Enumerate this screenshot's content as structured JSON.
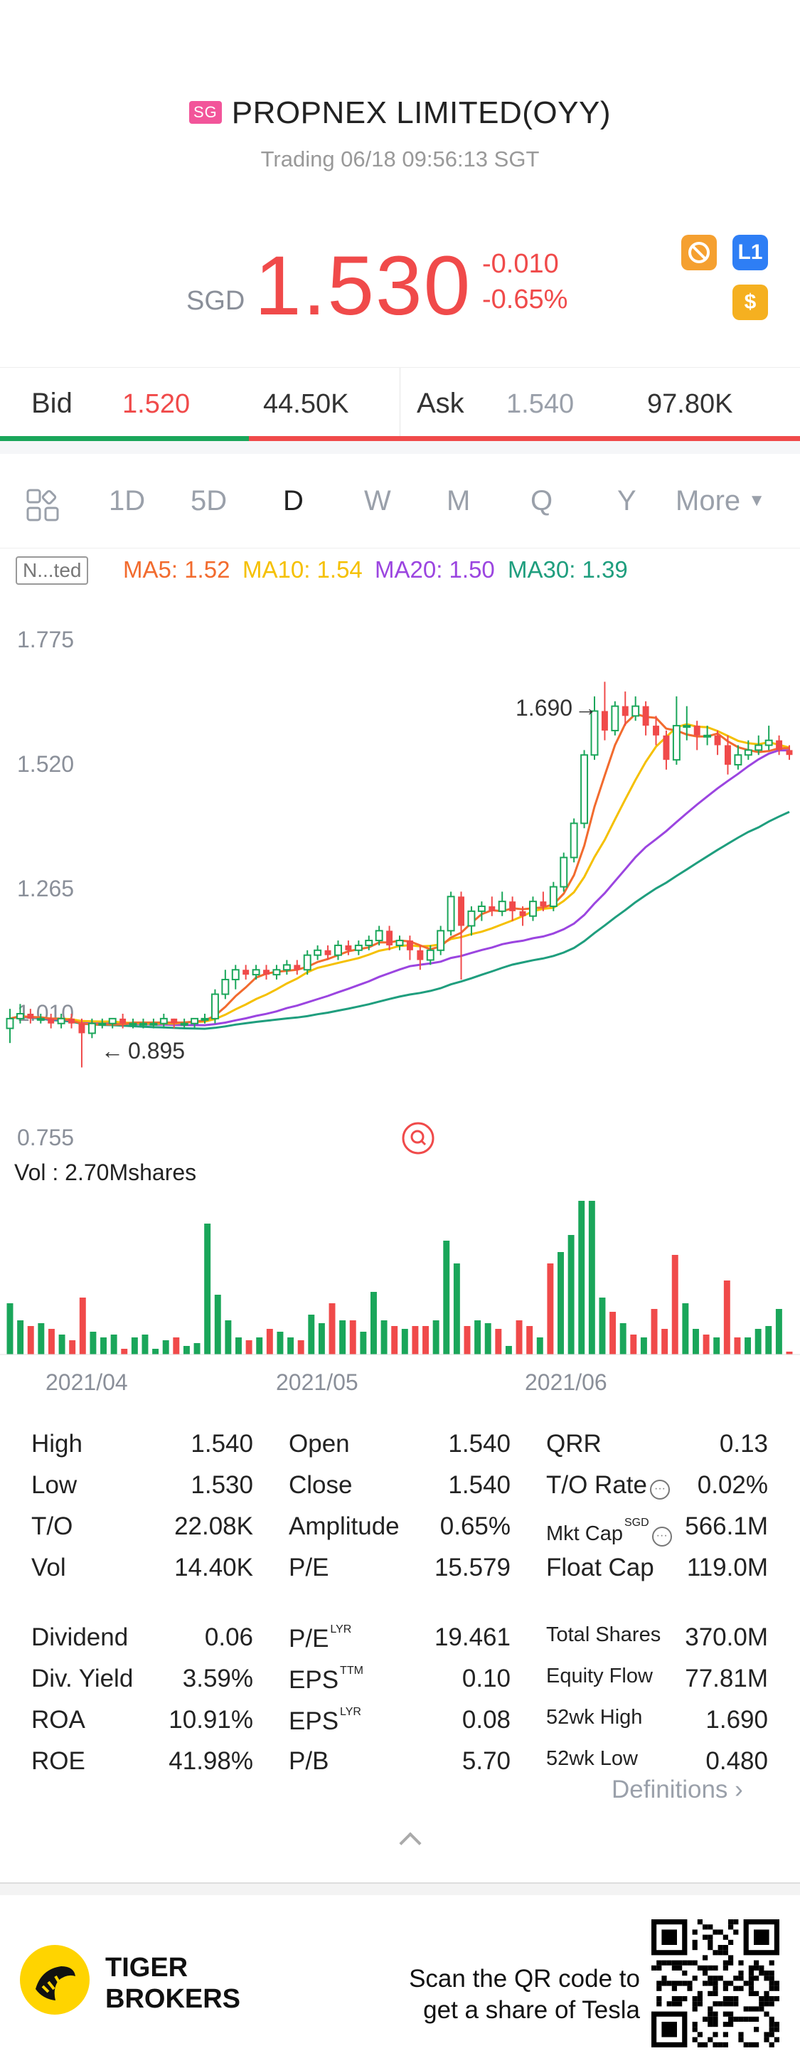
{
  "header": {
    "badge": "SG",
    "title": "PROPNEX LIMITED(OYY)",
    "status": "Trading 06/18 09:56:13 SGT"
  },
  "quote": {
    "currency": "SGD",
    "price": "1.530",
    "change": "-0.010",
    "change_pct": "-0.65%",
    "colors": {
      "down": "#f04a4a",
      "up": "#1aa65a"
    },
    "icons": [
      "no-short-icon",
      "level1-icon",
      "dollar-icon"
    ]
  },
  "bidask": {
    "bid_label": "Bid",
    "bid_price": "1.520",
    "bid_size": "44.50K",
    "ask_label": "Ask",
    "ask_price": "1.540",
    "ask_size": "97.80K"
  },
  "tabs": {
    "items": [
      "1D",
      "5D",
      "D",
      "W",
      "M",
      "Q",
      "Y"
    ],
    "active": "D",
    "more": "More"
  },
  "ma": {
    "mode": "N...ted",
    "ma5": "MA5: 1.52",
    "ma10": "MA10: 1.54",
    "ma20": "MA20: 1.50",
    "ma30": "MA30: 1.39",
    "colors": {
      "ma5": "#f26b2e",
      "ma10": "#f5c000",
      "ma20": "#9b45e0",
      "ma30": "#1f9e7e"
    }
  },
  "chart_data": {
    "type": "candlestick",
    "y_ticks": [
      "1.775",
      "1.520",
      "1.265",
      "1.010",
      "0.755"
    ],
    "ylim": [
      0.755,
      1.775
    ],
    "x_ticks": [
      "2021/04",
      "2021/05",
      "2021/06"
    ],
    "high_marker": "1.690",
    "low_marker": "0.895",
    "volume_label": "Vol  : 2.70Mshares",
    "candles": [
      [
        0.98,
        1.0,
        0.95,
        1.02
      ],
      [
        1.0,
        1.01,
        0.99,
        1.03
      ],
      [
        1.01,
        1.0,
        0.99,
        1.02
      ],
      [
        1.0,
        1.0,
        0.99,
        1.01
      ],
      [
        1.0,
        0.99,
        0.98,
        1.01
      ],
      [
        0.99,
        1.0,
        0.98,
        1.01
      ],
      [
        1.0,
        0.99,
        0.98,
        1.01
      ],
      [
        0.99,
        0.97,
        0.9,
        1.0
      ],
      [
        0.97,
        0.99,
        0.96,
        1.0
      ],
      [
        0.99,
        0.99,
        0.98,
        1.0
      ],
      [
        0.99,
        1.0,
        0.98,
        1.0
      ],
      [
        1.0,
        0.99,
        0.98,
        1.01
      ],
      [
        0.99,
        0.99,
        0.98,
        1.0
      ],
      [
        0.99,
        0.99,
        0.98,
        1.0
      ],
      [
        0.99,
        0.99,
        0.98,
        1.0
      ],
      [
        0.99,
        1.0,
        0.98,
        1.01
      ],
      [
        1.0,
        0.99,
        0.98,
        1.0
      ],
      [
        0.99,
        0.99,
        0.98,
        1.0
      ],
      [
        0.99,
        1.0,
        0.98,
        1.0
      ],
      [
        1.0,
        1.0,
        0.99,
        1.01
      ],
      [
        1.0,
        1.05,
        0.99,
        1.06
      ],
      [
        1.05,
        1.08,
        1.04,
        1.1
      ],
      [
        1.08,
        1.1,
        1.06,
        1.11
      ],
      [
        1.1,
        1.09,
        1.08,
        1.11
      ],
      [
        1.09,
        1.1,
        1.08,
        1.11
      ],
      [
        1.1,
        1.09,
        1.08,
        1.11
      ],
      [
        1.09,
        1.1,
        1.08,
        1.11
      ],
      [
        1.1,
        1.11,
        1.09,
        1.12
      ],
      [
        1.11,
        1.1,
        1.09,
        1.12
      ],
      [
        1.1,
        1.13,
        1.09,
        1.14
      ],
      [
        1.13,
        1.14,
        1.12,
        1.15
      ],
      [
        1.14,
        1.13,
        1.12,
        1.15
      ],
      [
        1.13,
        1.15,
        1.12,
        1.16
      ],
      [
        1.15,
        1.14,
        1.13,
        1.16
      ],
      [
        1.14,
        1.15,
        1.13,
        1.16
      ],
      [
        1.15,
        1.16,
        1.14,
        1.17
      ],
      [
        1.16,
        1.18,
        1.15,
        1.19
      ],
      [
        1.18,
        1.15,
        1.14,
        1.19
      ],
      [
        1.15,
        1.16,
        1.14,
        1.17
      ],
      [
        1.16,
        1.14,
        1.12,
        1.17
      ],
      [
        1.14,
        1.12,
        1.1,
        1.15
      ],
      [
        1.12,
        1.14,
        1.11,
        1.15
      ],
      [
        1.14,
        1.18,
        1.13,
        1.19
      ],
      [
        1.18,
        1.25,
        1.17,
        1.26
      ],
      [
        1.25,
        1.19,
        1.08,
        1.26
      ],
      [
        1.19,
        1.22,
        1.17,
        1.23
      ],
      [
        1.22,
        1.23,
        1.2,
        1.24
      ],
      [
        1.23,
        1.22,
        1.21,
        1.25
      ],
      [
        1.22,
        1.24,
        1.21,
        1.26
      ],
      [
        1.24,
        1.22,
        1.2,
        1.25
      ],
      [
        1.22,
        1.21,
        1.19,
        1.23
      ],
      [
        1.21,
        1.24,
        1.2,
        1.25
      ],
      [
        1.24,
        1.23,
        1.22,
        1.26
      ],
      [
        1.23,
        1.27,
        1.22,
        1.28
      ],
      [
        1.27,
        1.33,
        1.26,
        1.34
      ],
      [
        1.33,
        1.4,
        1.32,
        1.41
      ],
      [
        1.4,
        1.54,
        1.39,
        1.55
      ],
      [
        1.54,
        1.63,
        1.53,
        1.66
      ],
      [
        1.63,
        1.59,
        1.57,
        1.69
      ],
      [
        1.59,
        1.64,
        1.58,
        1.65
      ],
      [
        1.64,
        1.62,
        1.6,
        1.67
      ],
      [
        1.62,
        1.64,
        1.61,
        1.66
      ],
      [
        1.64,
        1.6,
        1.58,
        1.65
      ],
      [
        1.6,
        1.58,
        1.56,
        1.62
      ],
      [
        1.58,
        1.53,
        1.51,
        1.59
      ],
      [
        1.53,
        1.6,
        1.52,
        1.66
      ],
      [
        1.6,
        1.6,
        1.57,
        1.64
      ],
      [
        1.6,
        1.58,
        1.55,
        1.61
      ],
      [
        1.58,
        1.58,
        1.56,
        1.6
      ],
      [
        1.58,
        1.56,
        1.54,
        1.59
      ],
      [
        1.56,
        1.52,
        1.5,
        1.58
      ],
      [
        1.52,
        1.54,
        1.51,
        1.56
      ],
      [
        1.54,
        1.55,
        1.53,
        1.57
      ],
      [
        1.55,
        1.56,
        1.54,
        1.58
      ],
      [
        1.56,
        1.57,
        1.55,
        1.6
      ],
      [
        1.57,
        1.55,
        1.54,
        1.58
      ],
      [
        1.55,
        1.54,
        1.53,
        1.56
      ]
    ],
    "volumes": [
      0.9,
      0.6,
      0.5,
      0.55,
      0.45,
      0.35,
      0.25,
      1.0,
      0.4,
      0.3,
      0.35,
      0.1,
      0.3,
      0.35,
      0.1,
      0.25,
      0.3,
      0.15,
      0.2,
      2.3,
      1.05,
      0.6,
      0.3,
      0.25,
      0.3,
      0.45,
      0.4,
      0.3,
      0.25,
      0.7,
      0.55,
      0.9,
      0.6,
      0.6,
      0.4,
      1.1,
      0.6,
      0.5,
      0.45,
      0.5,
      0.5,
      0.6,
      2.0,
      1.6,
      0.5,
      0.6,
      0.55,
      0.45,
      0.15,
      0.6,
      0.5,
      0.3,
      1.6,
      1.8,
      2.1,
      2.7,
      2.7,
      1.0,
      0.75,
      0.55,
      0.35,
      0.3,
      0.8,
      0.45,
      1.75,
      0.9,
      0.45,
      0.35,
      0.3,
      1.3,
      0.3,
      0.3,
      0.45,
      0.5,
      0.8,
      0.05
    ]
  },
  "stats": {
    "rows": [
      [
        "High",
        "1.540",
        "Open",
        "1.540",
        "QRR",
        "0.13"
      ],
      [
        "Low",
        "1.530",
        "Close",
        "1.540",
        "T/O Rate",
        "0.02%"
      ],
      [
        "T/O",
        "22.08K",
        "Amplitude",
        "0.65%",
        "Mkt Cap",
        "566.1M"
      ],
      [
        "Vol",
        "14.40K",
        "P/E",
        "15.579",
        "Float Cap",
        "119.0M"
      ],
      [
        "Dividend",
        "0.06",
        "P/E",
        "19.461",
        "Total Shares",
        "370.0M"
      ],
      [
        "Div. Yield",
        "3.59%",
        "EPS",
        "0.10",
        "Equity Flow",
        "77.81M"
      ],
      [
        "ROA",
        "10.91%",
        "EPS",
        "0.08",
        "52wk High",
        "1.690"
      ],
      [
        "ROE",
        "41.98%",
        "P/B",
        "5.70",
        "52wk Low",
        "0.480"
      ]
    ],
    "sup_pe2": "LYR",
    "sup_eps1": "TTM",
    "sup_eps2": "LYR",
    "sup_mktcap": "SGD",
    "definitions": "Definitions"
  },
  "footer": {
    "brand_line1": "TIGER",
    "brand_line2": "BROKERS",
    "scan_line1": "Scan the QR code to",
    "scan_line2": "get a share of Tesla"
  }
}
